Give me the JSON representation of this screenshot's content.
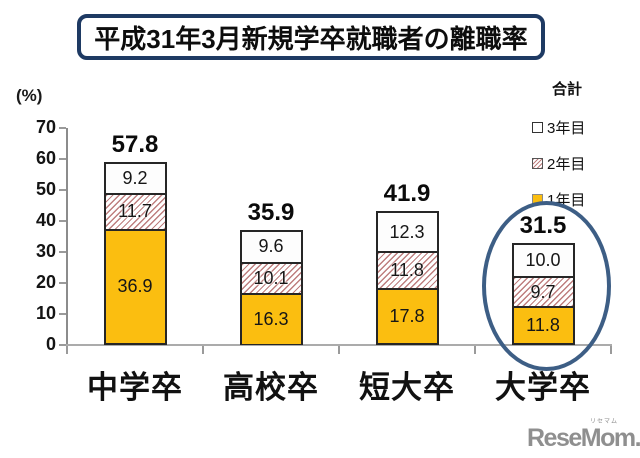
{
  "title": "平成31年3月新規学卒就職者の離職率",
  "y_axis": {
    "unit_label": "(%)",
    "ticks": [
      "70",
      "60",
      "50",
      "40",
      "30",
      "20",
      "10",
      "0"
    ]
  },
  "legend": {
    "title": "合計",
    "items": [
      {
        "label": "3年目",
        "style": "white"
      },
      {
        "label": "2年目",
        "style": "hatch"
      },
      {
        "label": "1年目",
        "style": "yellow"
      }
    ]
  },
  "chart_data": {
    "type": "bar",
    "stacked": true,
    "title": "平成31年3月新規学卒就職者の離職率",
    "ylabel": "(%)",
    "ylim": [
      0,
      70
    ],
    "y_tick_step": 10,
    "grid": false,
    "legend_position": "right",
    "categories": [
      "中学卒",
      "高校卒",
      "短大卒",
      "大学卒"
    ],
    "series": [
      {
        "name": "1年目",
        "values": [
          36.9,
          16.3,
          17.8,
          11.8
        ],
        "fill": "#FBBE10",
        "pattern": "solid"
      },
      {
        "name": "2年目",
        "values": [
          11.7,
          10.1,
          11.8,
          9.7
        ],
        "fill": "#BE7E7E",
        "pattern": "diagonal-hatch"
      },
      {
        "name": "3年目",
        "values": [
          9.2,
          9.6,
          12.3,
          10.0
        ],
        "fill": "#FFFFFF",
        "pattern": "solid"
      }
    ],
    "totals": [
      57.8,
      35.9,
      41.9,
      31.5
    ],
    "annotation": {
      "type": "ellipse",
      "target_category": "大学卒",
      "color": "#3D5E85"
    }
  },
  "colors": {
    "title_border": "#1E3A63",
    "bar_yellow": "#FBBE10",
    "hatch_line": "#BE7E7E",
    "ellipse": "#3D5E85",
    "logo_gray": "#8F8F8F"
  },
  "watermark": {
    "text": "ReseMom.",
    "ruby": "リセマム"
  }
}
